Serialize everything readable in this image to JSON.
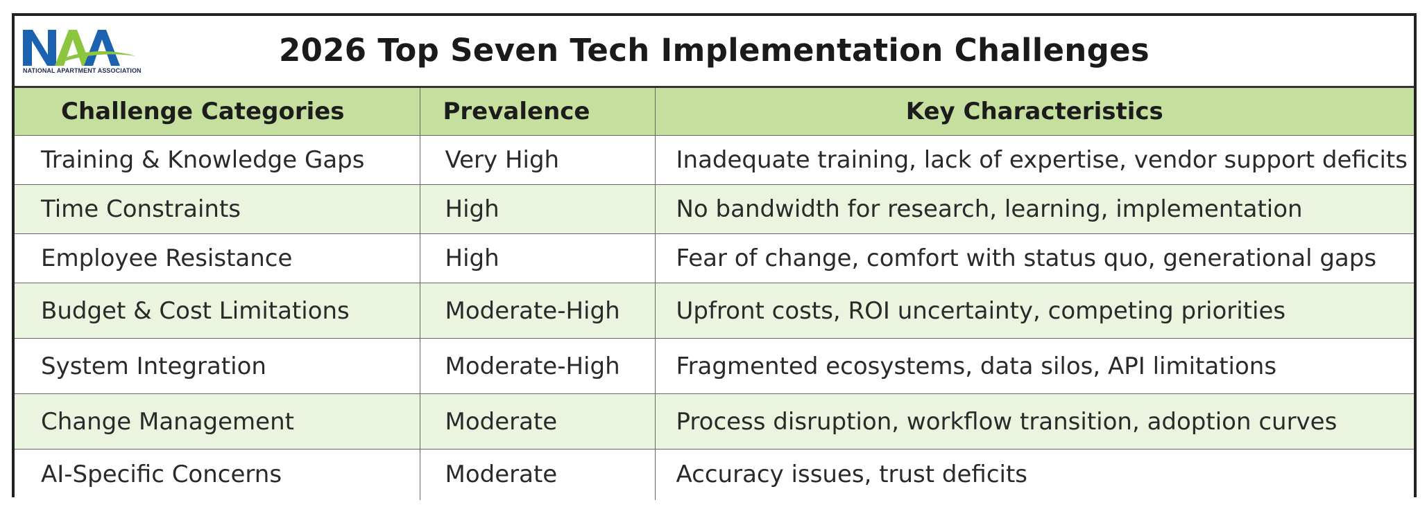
{
  "logo": {
    "letters": "NAA",
    "caption": "NATIONAL APARTMENT ASSOCIATION"
  },
  "title": "2026 Top Seven Tech Implementation Challenges",
  "columns": [
    "Challenge Categories",
    "Prevalence",
    "Key Characteristics"
  ],
  "rows": [
    {
      "category": "Training & Knowledge Gaps",
      "prevalence": "Very High",
      "characteristics": "Inadequate training, lack of expertise, vendor support deficits"
    },
    {
      "category": "Time Constraints",
      "prevalence": "High",
      "characteristics": "No bandwidth for research, learning, implementation"
    },
    {
      "category": "Employee Resistance",
      "prevalence": "High",
      "characteristics": "Fear of change, comfort with status quo, generational gaps"
    },
    {
      "category": "Budget & Cost Limitations",
      "prevalence": "Moderate-High",
      "characteristics": "Upfront costs, ROI uncertainty, competing priorities"
    },
    {
      "category": "System Integration",
      "prevalence": "Moderate-High",
      "characteristics": "Fragmented ecosystems, data silos, API limitations"
    },
    {
      "category": "Change Management",
      "prevalence": "Moderate",
      "characteristics": "Process disruption, workflow transition, adoption curves"
    },
    {
      "category": "AI-Specific Concerns",
      "prevalence": "Moderate",
      "characteristics": "Accuracy issues, trust deficits"
    }
  ],
  "colors": {
    "header_fill": "#c5df9e",
    "stripe_fill": "#ebf4df",
    "logo_blue": "#1b63b1",
    "logo_green": "#8cc63f",
    "logo_navy": "#1d2a52"
  }
}
